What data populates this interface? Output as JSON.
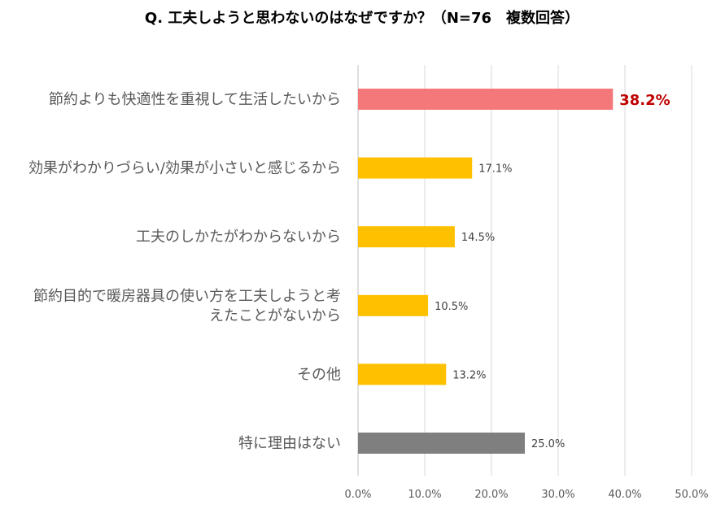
{
  "chart_data": {
    "type": "bar",
    "orientation": "horizontal",
    "title": "Q. 工夫しようと思わないのはなぜですか？（N=76　複数回答）",
    "categories": [
      [
        "節約よりも快適性を重視して生活したいから"
      ],
      [
        "効果がわかりづらい/効果が小さいと感じるから"
      ],
      [
        "工夫のしかたがわからないから"
      ],
      [
        "節約目的で暖房器具の使い方を工夫しようと考",
        "えたことがないから"
      ],
      [
        "その他"
      ],
      [
        "特に理由はない"
      ]
    ],
    "values": [
      38.2,
      17.1,
      14.5,
      10.5,
      13.2,
      25.0
    ],
    "value_labels": [
      "38.2%",
      "17.1%",
      "14.5%",
      "10.5%",
      "13.2%",
      "25.0%"
    ],
    "bar_colors": [
      "#f4787a",
      "#ffc000",
      "#ffc000",
      "#ffc000",
      "#ffc000",
      "#7f7f7f"
    ],
    "highlight_label_color": "#c00000",
    "xlim": [
      0,
      50
    ],
    "xticks": [
      0,
      10,
      20,
      30,
      40,
      50
    ],
    "xtick_labels": [
      "0.0%",
      "10.0%",
      "20.0%",
      "30.0%",
      "40.0%",
      "50.0%"
    ],
    "grid": true,
    "legend": "none"
  }
}
